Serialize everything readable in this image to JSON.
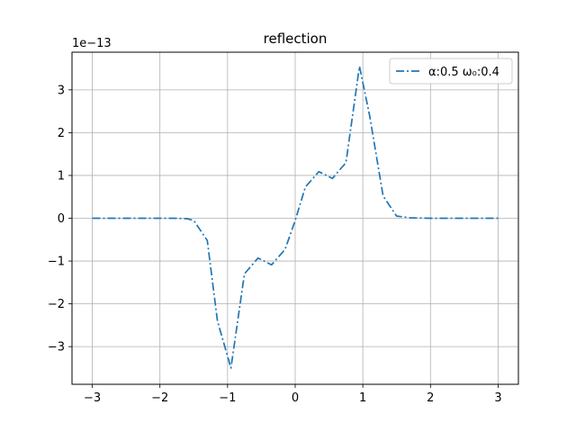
{
  "chart_data": {
    "type": "line",
    "title": "reflection",
    "xlabel": "",
    "ylabel": "",
    "y_offset_label": "1e−13",
    "xlim": [
      -3.3,
      3.3
    ],
    "ylim": [
      -3.88,
      3.88
    ],
    "x_ticks": [
      -3,
      -2,
      -1,
      0,
      1,
      2,
      3
    ],
    "x_tick_labels": [
      "−3",
      "−2",
      "−1",
      "0",
      "1",
      "2",
      "3"
    ],
    "y_ticks": [
      3,
      2,
      1,
      0,
      -1,
      -2,
      -3
    ],
    "y_tick_labels": [
      "3",
      "2",
      "1",
      "0",
      "−1",
      "−2",
      "−3"
    ],
    "grid": true,
    "legend_position": "top-right",
    "series": [
      {
        "name": "α:0.5 ω₀:0.4",
        "color": "#1f77b4",
        "linestyle": "dashdot",
        "x": [
          -3.0,
          -2.8,
          -2.6,
          -2.4,
          -2.2,
          -2.0,
          -1.8,
          -1.6,
          -1.5,
          -1.3,
          -1.15,
          -0.95,
          -0.75,
          -0.55,
          -0.35,
          -0.15,
          0.0,
          0.15,
          0.35,
          0.55,
          0.75,
          0.95,
          1.1,
          1.3,
          1.5,
          1.7,
          2.0,
          2.5,
          3.0
        ],
        "y": [
          0,
          0,
          0,
          0,
          0,
          0,
          0,
          -0.01,
          -0.05,
          -0.52,
          -2.4,
          -3.5,
          -1.3,
          -0.93,
          -1.09,
          -0.73,
          -0.05,
          0.73,
          1.09,
          0.93,
          1.3,
          3.55,
          2.4,
          0.52,
          0.05,
          0.01,
          0,
          0,
          0
        ]
      }
    ]
  }
}
